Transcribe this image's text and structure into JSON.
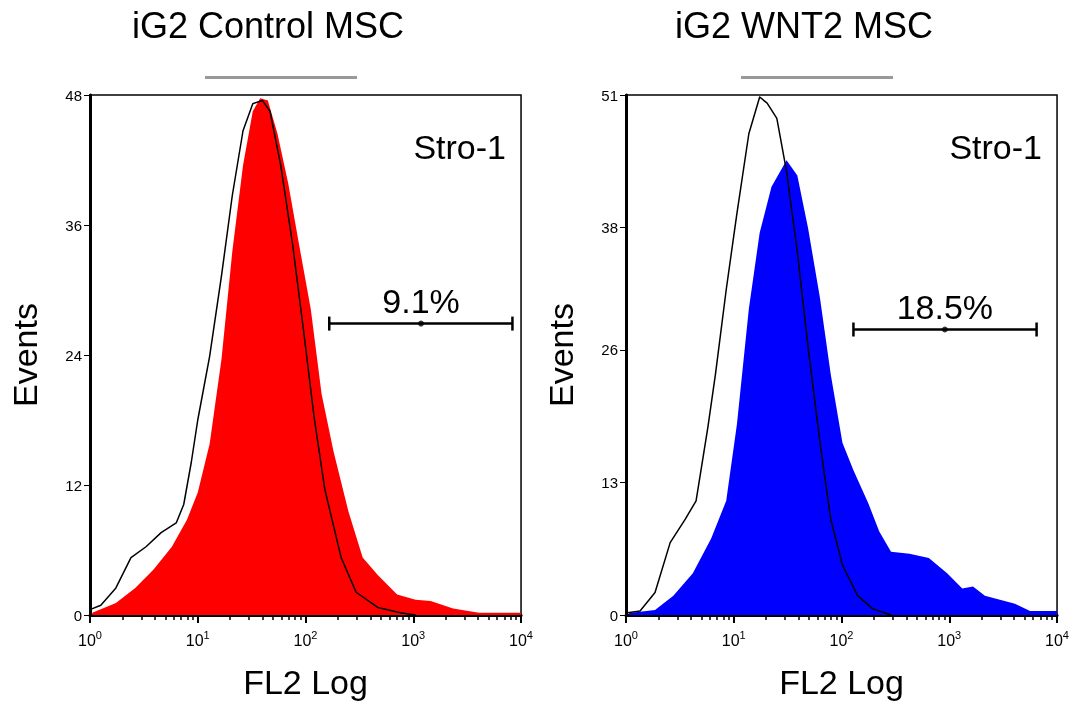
{
  "chart_data": [
    {
      "type": "area",
      "title": "iG2 Control MSC",
      "xlabel": "FL2 Log",
      "ylabel": "Events",
      "log": "x",
      "xlim": [
        1,
        10000
      ],
      "ylim": [
        0,
        48
      ],
      "xticks": [
        {
          "value": 1,
          "label": "10$^{0}$"
        },
        {
          "value": 10,
          "label": "10$^{1}$"
        },
        {
          "value": 100,
          "label": "10$^{2}$"
        },
        {
          "value": 1000,
          "label": "10$^{3}$"
        },
        {
          "value": 10000,
          "label": "10$^{4}$"
        }
      ],
      "yticks": [
        0,
        12,
        24,
        36,
        48
      ],
      "grid": false,
      "marker": "none",
      "annotations": [
        "Stro-1",
        {
          "text": "9.1%",
          "x": 1180,
          "y": 26.9
        }
      ],
      "series": [
        {
          "color": "#ff0000",
          "x": [
            1.05,
            1.74,
            2.63,
            3.89,
            5.75,
            7.94,
            10,
            12.9,
            16.6,
            20.9,
            26.3,
            32.4,
            38,
            44.7,
            55,
            69.2,
            87.1,
            112,
            141,
            182,
            251,
            339,
            468,
            708,
            1050,
            1450,
            2340,
            4070,
            7760,
            10000
          ],
          "values": [
            0.2,
            1.1,
            2.5,
            4.2,
            6.3,
            8.8,
            11.3,
            15.8,
            23.6,
            33.5,
            41.5,
            46.5,
            47.7,
            47.5,
            44.4,
            39.8,
            34.2,
            28.2,
            20.4,
            15.1,
            9.5,
            5.3,
            3.7,
            1.9,
            1.4,
            1.3,
            0.6,
            0.2,
            0.2,
            0.2
          ]
        },
        {
          "type": "line",
          "color": "#000000",
          "x": [
            1,
            1.26,
            1.74,
            2.4,
            3.31,
            4.57,
            6.31,
            7.41,
            8.71,
            10,
            12.9,
            16.6,
            20.9,
            26.3,
            32.4,
            39.8,
            46.8,
            58.9,
            75.9,
            95.5,
            120,
            151,
            214,
            295,
            468,
            759,
            1050
          ],
          "values": [
            0.5,
            0.9,
            2.5,
            5.3,
            6.3,
            7.6,
            8.5,
            10.2,
            14.1,
            18,
            23.9,
            31.3,
            38.7,
            44.7,
            47.2,
            47.5,
            46.5,
            41.5,
            34.2,
            26.4,
            18.3,
            11.6,
            5.3,
            2.1,
            0.7,
            0.2,
            0
          ]
        },
        {
          "type": "scatter",
          "color": "#000000",
          "x": [
            1180
          ],
          "values": [
            26.9
          ],
          "xerrors": [
            [
              166,
              8320
            ]
          ]
        }
      ]
    },
    {
      "type": "area",
      "title": "iG2 WNT2 MSC",
      "xlabel": "FL2 Log",
      "ylabel": "Events",
      "log": "x",
      "xlim": [
        1,
        10000
      ],
      "ylim": [
        0,
        51
      ],
      "xticks": [
        {
          "value": 1,
          "label": "10$^{0}$"
        },
        {
          "value": 10,
          "label": "10$^{1}$"
        },
        {
          "value": 100,
          "label": "10$^{2}$"
        },
        {
          "value": 1000,
          "label": "10$^{3}$"
        },
        {
          "value": 10000,
          "label": "10$^{4}$"
        }
      ],
      "yticks": [
        0,
        13,
        26,
        38,
        51
      ],
      "grid": false,
      "marker": "none",
      "annotations": [
        "Stro-1",
        {
          "text": "18.5%",
          "x": 910,
          "y": 28
        }
      ],
      "series": [
        {
          "color": "#0000ff",
          "x": [
            1.07,
            1.86,
            2.75,
            4.17,
            6.17,
            8.51,
            10.7,
            13.8,
            17.4,
            22.4,
            30.9,
            38.9,
            49,
            63.1,
            79.4,
            102,
            129,
            178,
            224,
            288,
            427,
            646,
            955,
            1320,
            1660,
            2140,
            2950,
            4070,
            5620,
            10000
          ],
          "values": [
            0.2,
            0.5,
            1.9,
            4.1,
            7.5,
            11.2,
            18.7,
            30,
            37.5,
            42,
            44.6,
            43.1,
            37.9,
            31.1,
            23.6,
            16.9,
            14.2,
            10.9,
            8.2,
            6.2,
            6,
            5.6,
            4.1,
            2.6,
            2.8,
            1.9,
            1.5,
            1.1,
            0.4,
            0.4
          ]
        },
        {
          "type": "line",
          "color": "#000000",
          "x": [
            1,
            1.35,
            1.86,
            2.57,
            3.55,
            4.47,
            5.75,
            6.76,
            8.51,
            10.7,
            13.8,
            17.4,
            20.4,
            25.1,
            30.9,
            38.9,
            49,
            63.1,
            79.4,
            102,
            141,
            195,
            288
          ],
          "values": [
            0.2,
            0.4,
            2.2,
            7.1,
            9.4,
            11.2,
            18.4,
            23.6,
            31.9,
            39.4,
            47.2,
            50.8,
            50.2,
            48.7,
            43.5,
            35.6,
            26.2,
            16.9,
            9.4,
            4.9,
            1.9,
            0.6,
            0
          ]
        },
        {
          "type": "scatter",
          "color": "#000000",
          "x": [
            910
          ],
          "values": [
            28
          ],
          "xerrors": [
            [
              129,
              6460
            ]
          ]
        }
      ]
    }
  ]
}
